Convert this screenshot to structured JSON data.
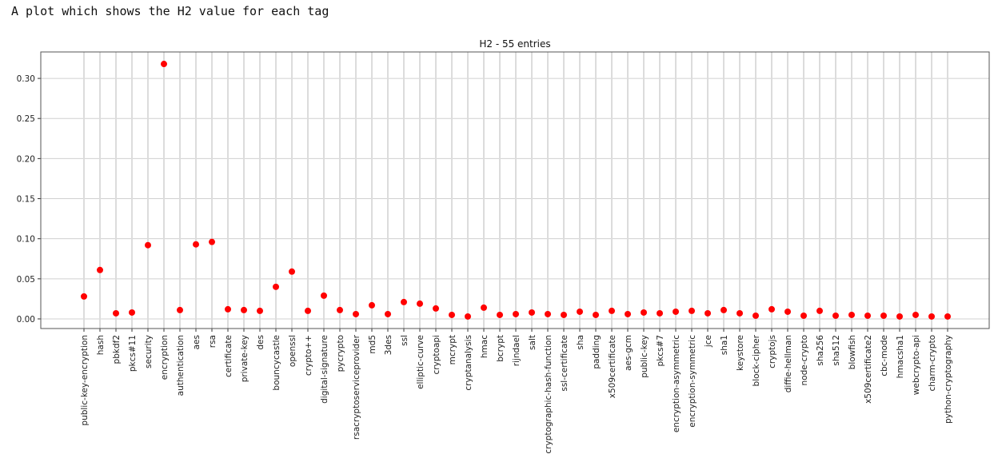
{
  "caption": "A plot which shows the H2 value for each tag",
  "chart_data": {
    "type": "scatter",
    "title": "H2 - 55 entries",
    "xlabel": "",
    "ylabel": "",
    "ylim": [
      -0.012,
      0.333
    ],
    "yticks": [
      0.0,
      0.05,
      0.1,
      0.15,
      0.2,
      0.25,
      0.3
    ],
    "ytick_labels": [
      "0.00",
      "0.05",
      "0.10",
      "0.15",
      "0.20",
      "0.25",
      "0.30"
    ],
    "grid": true,
    "marker_color": "#ff0000",
    "categories": [
      "public-key-encryption",
      "hash",
      "pbkdf2",
      "pkcs#11",
      "security",
      "encryption",
      "authentication",
      "aes",
      "rsa",
      "certificate",
      "private-key",
      "des",
      "bouncycastle",
      "openssl",
      "crypto++",
      "digital-signature",
      "pycrypto",
      "rsacryptoserviceprovider",
      "md5",
      "3des",
      "ssl",
      "elliptic-curve",
      "cryptoapi",
      "mcrypt",
      "cryptanalysis",
      "hmac",
      "bcrypt",
      "rijndael",
      "salt",
      "cryptographic-hash-function",
      "ssl-certificate",
      "sha",
      "padding",
      "x509certificate",
      "aes-gcm",
      "public-key",
      "pkcs#7",
      "encryption-asymmetric",
      "encryption-symmetric",
      "jce",
      "sha1",
      "keystore",
      "block-cipher",
      "cryptojs",
      "diffie-hellman",
      "node-crypto",
      "sha256",
      "sha512",
      "blowfish",
      "x509certificate2",
      "cbc-mode",
      "hmacsha1",
      "webcrypto-api",
      "charm-crypto",
      "python-cryptography"
    ],
    "values": [
      0.028,
      0.061,
      0.007,
      0.008,
      0.092,
      0.318,
      0.011,
      0.093,
      0.096,
      0.012,
      0.011,
      0.01,
      0.04,
      0.059,
      0.01,
      0.029,
      0.011,
      0.006,
      0.017,
      0.006,
      0.021,
      0.019,
      0.013,
      0.005,
      0.003,
      0.014,
      0.005,
      0.006,
      0.008,
      0.006,
      0.005,
      0.009,
      0.005,
      0.01,
      0.006,
      0.008,
      0.007,
      0.009,
      0.01,
      0.007,
      0.011,
      0.007,
      0.004,
      0.012,
      0.009,
      0.004,
      0.01,
      0.004,
      0.005,
      0.004,
      0.004,
      0.003,
      0.005,
      0.003,
      0.003
    ]
  }
}
